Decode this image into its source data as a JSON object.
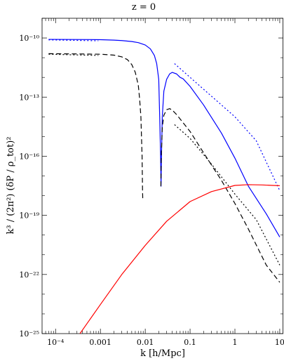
{
  "chart_data": {
    "type": "line",
    "title": "z = 0",
    "xlabel": "k   [h/Mpc]",
    "ylabel": "k³ / (2π²)   (δP / ρ_tot)²",
    "xscale": "log",
    "yscale": "log",
    "xlim": [
      5e-05,
      12
    ],
    "ylim": [
      1e-25,
      1e-09
    ],
    "grid": false,
    "legend": "none",
    "x_tick_labels": [
      "10⁻⁴",
      "0.001",
      "0.01",
      "0.1",
      "1",
      "10"
    ],
    "y_tick_labels": [
      "10⁻¹⁰",
      "10⁻¹³",
      "10⁻¹⁶",
      "10⁻¹⁹",
      "10⁻²²",
      "10⁻²⁵"
    ],
    "series": [
      {
        "style": "solid",
        "color": "#0000ff",
        "points": [
          [
            7e-05,
            8.5e-11
          ],
          [
            0.0002,
            8.4e-11
          ],
          [
            0.0006,
            8.3e-11
          ],
          [
            0.001,
            8.2e-11
          ],
          [
            0.002,
            7.8e-11
          ],
          [
            0.003,
            7.4e-11
          ],
          [
            0.005,
            6.6e-11
          ],
          [
            0.007,
            5.8e-11
          ],
          [
            0.01,
            4.4e-11
          ],
          [
            0.013,
            2.8e-11
          ],
          [
            0.016,
            1.3e-11
          ],
          [
            0.018,
            5e-12
          ],
          [
            0.02,
            8e-13
          ],
          [
            0.021,
            1e-14
          ],
          [
            0.022,
            1e-16
          ],
          [
            0.0225,
            3e-18
          ],
          [
            0.023,
            1e-16
          ],
          [
            0.024,
            1e-14
          ],
          [
            0.026,
            2e-13
          ],
          [
            0.03,
            8e-13
          ],
          [
            0.035,
            1.5e-12
          ],
          [
            0.04,
            1.8e-12
          ],
          [
            0.05,
            1.5e-12
          ],
          [
            0.06,
            1e-12
          ],
          [
            0.07,
            8.5e-13
          ],
          [
            0.1,
            3.5e-13
          ],
          [
            0.2,
            4e-14
          ],
          [
            0.5,
            1.5e-15
          ],
          [
            1,
            8e-17
          ],
          [
            2,
            3e-18
          ],
          [
            5,
            1.2e-19
          ],
          [
            10,
            8e-21
          ]
        ]
      },
      {
        "style": "dotted",
        "color": "#0000ff",
        "points": [
          [
            7e-05,
            8e-11
          ],
          [
            0.0009,
            7.2e-11
          ]
        ]
      },
      {
        "style": "dotted",
        "color": "#0000ff",
        "points": [
          [
            0.045,
            5e-12
          ],
          [
            0.2,
            2.5e-13
          ],
          [
            1,
            1e-14
          ],
          [
            3,
            6e-16
          ],
          [
            10,
            1.8e-18
          ]
        ]
      },
      {
        "style": "dashed",
        "color": "#000000",
        "points": [
          [
            7e-05,
            1.6e-11
          ],
          [
            0.0003,
            1.55e-11
          ],
          [
            0.001,
            1.5e-11
          ],
          [
            0.002,
            1.35e-11
          ],
          [
            0.003,
            1.1e-11
          ],
          [
            0.004,
            8e-12
          ],
          [
            0.005,
            4.5e-12
          ],
          [
            0.006,
            1.8e-12
          ],
          [
            0.007,
            4e-13
          ],
          [
            0.0075,
            8e-14
          ],
          [
            0.008,
            1e-14
          ],
          [
            0.0085,
            1e-16
          ],
          [
            0.0087,
            2e-18
          ],
          [
            0.0088,
            7e-19
          ]
        ]
      },
      {
        "style": "dashed",
        "color": "#000000",
        "points": [
          [
            0.0223,
            3e-18
          ],
          [
            0.0228,
            1e-16
          ],
          [
            0.024,
            3e-15
          ],
          [
            0.026,
            1.2e-14
          ],
          [
            0.03,
            2.3e-14
          ],
          [
            0.035,
            2.6e-14
          ],
          [
            0.04,
            2.2e-14
          ],
          [
            0.05,
            1.3e-14
          ],
          [
            0.07,
            5e-15
          ],
          [
            0.1,
            1.8e-15
          ],
          [
            0.2,
            1.5e-16
          ],
          [
            0.5,
            6e-18
          ],
          [
            1,
            4e-19
          ],
          [
            2,
            2e-20
          ],
          [
            5,
            3e-22
          ],
          [
            10,
            4e-23
          ]
        ]
      },
      {
        "style": "dotted",
        "color": "#000000",
        "points": [
          [
            7e-05,
            1.5e-11
          ],
          [
            0.0009,
            1.3e-11
          ]
        ]
      },
      {
        "style": "dotted",
        "color": "#000000",
        "points": [
          [
            0.045,
            4e-15
          ],
          [
            0.1,
            8e-16
          ],
          [
            0.3,
            4e-17
          ],
          [
            1,
            1.2e-18
          ],
          [
            3,
            6e-20
          ],
          [
            10,
            3e-22
          ]
        ]
      },
      {
        "style": "solid",
        "color": "#ff0000",
        "points": [
          [
            0.00035,
            1e-25
          ],
          [
            0.001,
            3e-24
          ],
          [
            0.003,
            1e-22
          ],
          [
            0.01,
            3e-21
          ],
          [
            0.03,
            5e-20
          ],
          [
            0.1,
            5e-19
          ],
          [
            0.3,
            1.6e-18
          ],
          [
            1,
            3.3e-18
          ],
          [
            2,
            3.6e-18
          ],
          [
            4,
            3.5e-18
          ],
          [
            7,
            3.3e-18
          ],
          [
            10,
            3.2e-18
          ]
        ]
      }
    ]
  }
}
